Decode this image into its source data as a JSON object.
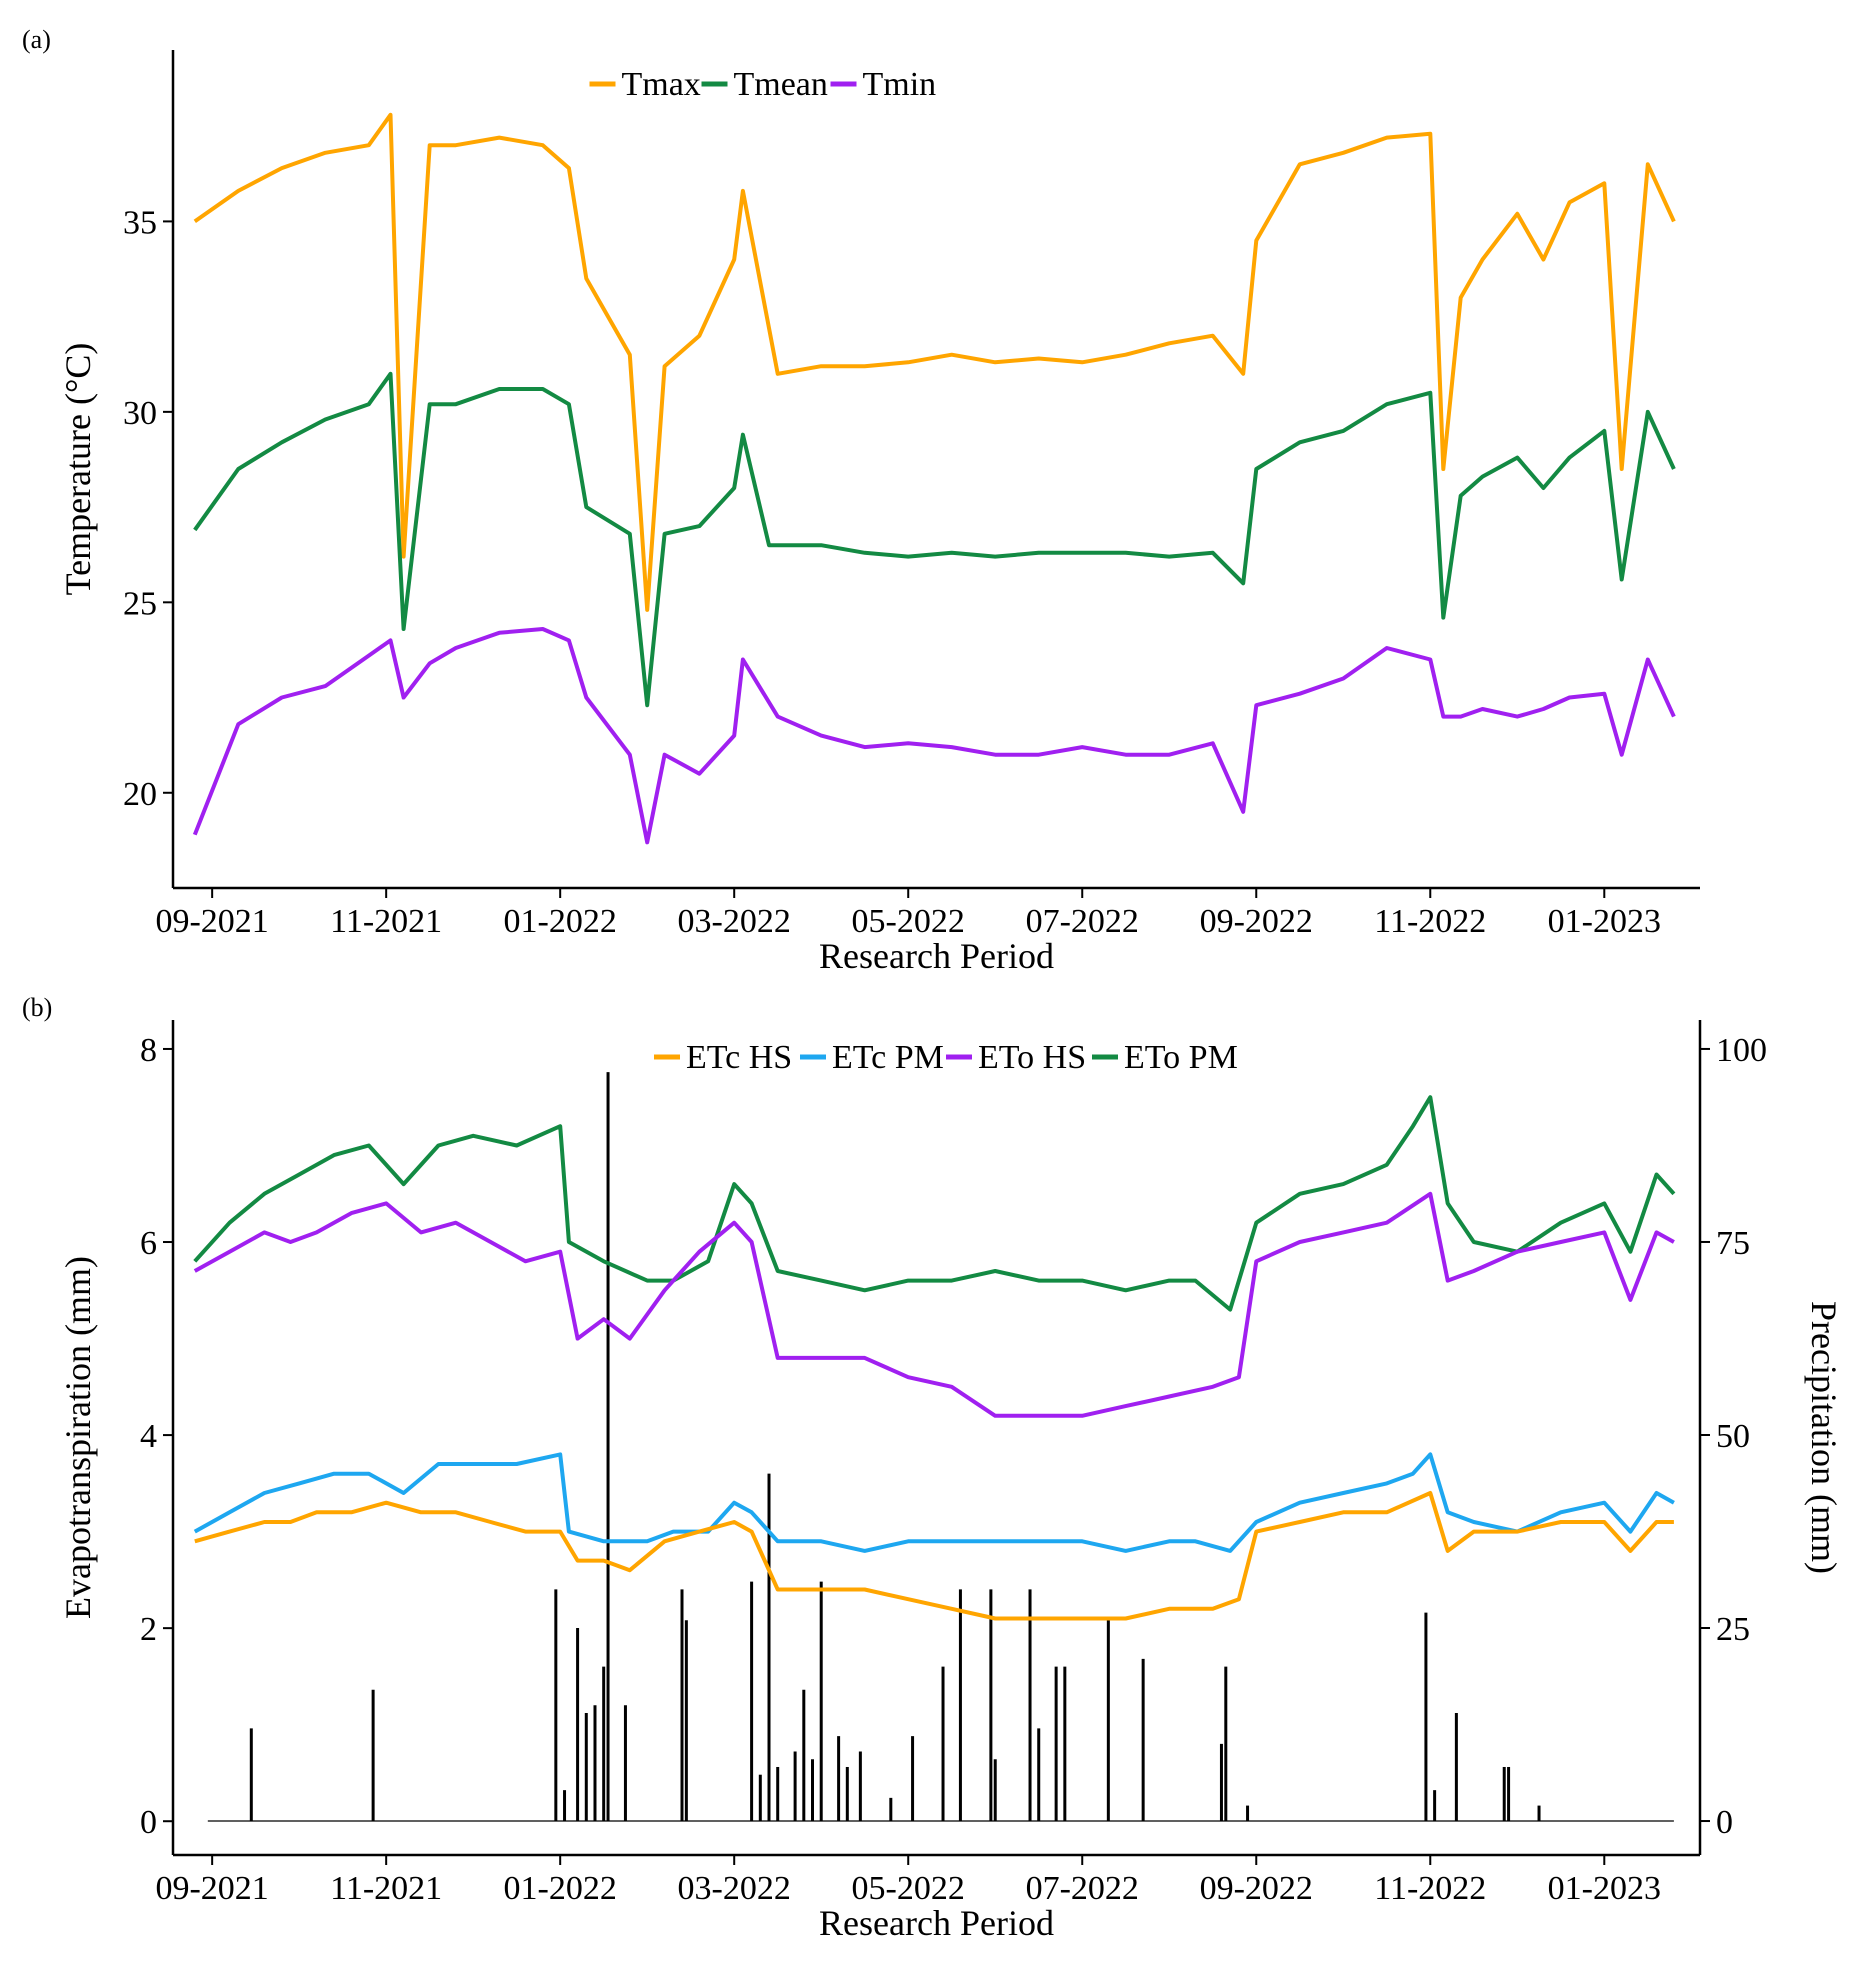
{
  "chart_data": [
    {
      "panel_label": "(a)",
      "type": "line",
      "xlabel": "Research Period",
      "ylabel": "Temperature (°C)",
      "ylim": [
        17.5,
        39.5
      ],
      "xlim_month_index": [
        -0.45,
        17.1
      ],
      "x_ticks": [
        {
          "label": "09-2021",
          "month_index": 0
        },
        {
          "label": "11-2021",
          "month_index": 2
        },
        {
          "label": "01-2022",
          "month_index": 4
        },
        {
          "label": "03-2022",
          "month_index": 6
        },
        {
          "label": "05-2022",
          "month_index": 8
        },
        {
          "label": "07-2022",
          "month_index": 10
        },
        {
          "label": "09-2022",
          "month_index": 12
        },
        {
          "label": "11-2022",
          "month_index": 14
        },
        {
          "label": "01-2023",
          "month_index": 16
        }
      ],
      "y_ticks": [
        {
          "label": "20",
          "value": 20
        },
        {
          "label": "25",
          "value": 25
        },
        {
          "label": "30",
          "value": 30
        },
        {
          "label": "35",
          "value": 35
        }
      ],
      "legend": [
        {
          "name": "Tmax",
          "color": "#FFA500"
        },
        {
          "name": "Tmean",
          "color": "#138A43"
        },
        {
          "name": "Tmin",
          "color": "#A020F0"
        }
      ],
      "series": [
        {
          "name": "Tmax",
          "color": "#FFA500",
          "x": [
            -0.2,
            0.3,
            0.8,
            1.3,
            1.8,
            2.05,
            2.2,
            2.5,
            2.8,
            3.3,
            3.8,
            4.1,
            4.3,
            4.8,
            5.0,
            5.2,
            5.6,
            6.0,
            6.1,
            6.5,
            7.0,
            7.5,
            8.0,
            8.5,
            9.0,
            9.5,
            10.0,
            10.5,
            11.0,
            11.5,
            11.85,
            12.0,
            12.5,
            13.0,
            13.5,
            14.0,
            14.15,
            14.35,
            14.6,
            15.0,
            15.3,
            15.6,
            16.0,
            16.2,
            16.5,
            16.8
          ],
          "values": [
            35.0,
            35.8,
            36.4,
            36.8,
            37.0,
            37.8,
            26.2,
            37.0,
            37.0,
            37.2,
            37.0,
            36.4,
            33.5,
            31.5,
            24.8,
            31.2,
            32.0,
            34.0,
            35.8,
            31.0,
            31.2,
            31.2,
            31.3,
            31.5,
            31.3,
            31.4,
            31.3,
            31.5,
            31.8,
            32.0,
            31.0,
            34.5,
            36.5,
            36.8,
            37.2,
            37.3,
            28.5,
            33.0,
            34.0,
            35.2,
            34.0,
            35.5,
            36.0,
            28.5,
            36.5,
            35.0
          ]
        },
        {
          "name": "Tmean",
          "color": "#138A43",
          "x": [
            -0.2,
            0.3,
            0.8,
            1.3,
            1.8,
            2.05,
            2.2,
            2.5,
            2.8,
            3.3,
            3.8,
            4.1,
            4.3,
            4.8,
            5.0,
            5.2,
            5.6,
            6.0,
            6.1,
            6.4,
            7.0,
            7.5,
            8.0,
            8.5,
            9.0,
            9.5,
            10.0,
            10.5,
            11.0,
            11.5,
            11.85,
            12.0,
            12.5,
            13.0,
            13.5,
            14.0,
            14.15,
            14.35,
            14.6,
            15.0,
            15.3,
            15.6,
            16.0,
            16.2,
            16.5,
            16.8
          ],
          "values": [
            26.9,
            28.5,
            29.2,
            29.8,
            30.2,
            31.0,
            24.3,
            30.2,
            30.2,
            30.6,
            30.6,
            30.2,
            27.5,
            26.8,
            22.3,
            26.8,
            27.0,
            28.0,
            29.4,
            26.5,
            26.5,
            26.3,
            26.2,
            26.3,
            26.2,
            26.3,
            26.3,
            26.3,
            26.2,
            26.3,
            25.5,
            28.5,
            29.2,
            29.5,
            30.2,
            30.5,
            24.6,
            27.8,
            28.3,
            28.8,
            28.0,
            28.8,
            29.5,
            25.6,
            30.0,
            28.5
          ]
        },
        {
          "name": "Tmin",
          "color": "#A020F0",
          "x": [
            -0.2,
            0.3,
            0.8,
            1.3,
            1.8,
            2.05,
            2.2,
            2.5,
            2.8,
            3.3,
            3.8,
            4.1,
            4.3,
            4.8,
            5.0,
            5.2,
            5.6,
            6.0,
            6.1,
            6.5,
            7.0,
            7.5,
            8.0,
            8.5,
            9.0,
            9.5,
            10.0,
            10.5,
            11.0,
            11.5,
            11.85,
            12.0,
            12.5,
            13.0,
            13.5,
            14.0,
            14.15,
            14.35,
            14.6,
            15.0,
            15.3,
            15.6,
            16.0,
            16.2,
            16.5,
            16.8
          ],
          "values": [
            18.9,
            21.8,
            22.5,
            22.8,
            23.6,
            24.0,
            22.5,
            23.4,
            23.8,
            24.2,
            24.3,
            24.0,
            22.5,
            21.0,
            18.7,
            21.0,
            20.5,
            21.5,
            23.5,
            22.0,
            21.5,
            21.2,
            21.3,
            21.2,
            21.0,
            21.0,
            21.2,
            21.0,
            21.0,
            21.3,
            19.5,
            22.3,
            22.6,
            23.0,
            23.8,
            23.5,
            22.0,
            22.0,
            22.2,
            22.0,
            22.2,
            22.5,
            22.6,
            21.0,
            23.5,
            22.0
          ]
        }
      ]
    },
    {
      "panel_label": "(b)",
      "type": "line",
      "xlabel": "Research Period",
      "ylabel": "Evapotranspiration (mm)",
      "ylabel_right": "Precipitation (mm)",
      "ylim": [
        -0.35,
        8.3
      ],
      "ylim_right": [
        -4.4,
        103.75
      ],
      "xlim_month_index": [
        -0.45,
        17.1
      ],
      "x_ticks": [
        {
          "label": "09-2021",
          "month_index": 0
        },
        {
          "label": "11-2021",
          "month_index": 2
        },
        {
          "label": "01-2022",
          "month_index": 4
        },
        {
          "label": "03-2022",
          "month_index": 6
        },
        {
          "label": "05-2022",
          "month_index": 8
        },
        {
          "label": "07-2022",
          "month_index": 10
        },
        {
          "label": "09-2022",
          "month_index": 12
        },
        {
          "label": "11-2022",
          "month_index": 14
        },
        {
          "label": "01-2023",
          "month_index": 16
        }
      ],
      "y_ticks": [
        {
          "label": "0",
          "value": 0
        },
        {
          "label": "2",
          "value": 2
        },
        {
          "label": "4",
          "value": 4
        },
        {
          "label": "6",
          "value": 6
        },
        {
          "label": "8",
          "value": 8
        }
      ],
      "y_ticks_right": [
        {
          "label": "0",
          "value": 0
        },
        {
          "label": "25",
          "value": 25
        },
        {
          "label": "50",
          "value": 50
        },
        {
          "label": "75",
          "value": 75
        },
        {
          "label": "100",
          "value": 100
        }
      ],
      "legend": [
        {
          "name": "ETc HS",
          "color": "#FFA500"
        },
        {
          "name": "ETc PM",
          "color": "#1EA7F0"
        },
        {
          "name": "ETo HS",
          "color": "#A020F0"
        },
        {
          "name": "ETo PM",
          "color": "#138A43"
        }
      ],
      "series": [
        {
          "name": "ETo PM",
          "color": "#138A43",
          "x": [
            -0.2,
            0.2,
            0.6,
            1.0,
            1.4,
            1.8,
            2.2,
            2.6,
            3.0,
            3.5,
            4.0,
            4.1,
            4.5,
            5.0,
            5.3,
            5.7,
            6.0,
            6.2,
            6.5,
            7.0,
            7.5,
            8.0,
            8.5,
            9.0,
            9.5,
            10.0,
            10.5,
            11.0,
            11.3,
            11.7,
            12.0,
            12.5,
            13.0,
            13.5,
            13.8,
            14.0,
            14.2,
            14.5,
            15.0,
            15.5,
            16.0,
            16.3,
            16.6,
            16.8
          ],
          "values": [
            5.8,
            6.2,
            6.5,
            6.7,
            6.9,
            7.0,
            6.6,
            7.0,
            7.1,
            7.0,
            7.2,
            6.0,
            5.8,
            5.6,
            5.6,
            5.8,
            6.6,
            6.4,
            5.7,
            5.6,
            5.5,
            5.6,
            5.6,
            5.7,
            5.6,
            5.6,
            5.5,
            5.6,
            5.6,
            5.3,
            6.2,
            6.5,
            6.6,
            6.8,
            7.2,
            7.5,
            6.4,
            6.0,
            5.9,
            6.2,
            6.4,
            5.9,
            6.7,
            6.5
          ]
        },
        {
          "name": "ETo HS",
          "color": "#A020F0",
          "x": [
            -0.2,
            0.2,
            0.6,
            0.9,
            1.2,
            1.6,
            2.0,
            2.4,
            2.8,
            3.2,
            3.6,
            4.0,
            4.2,
            4.5,
            4.8,
            5.2,
            5.6,
            6.0,
            6.2,
            6.5,
            7.0,
            7.5,
            8.0,
            8.5,
            9.0,
            9.5,
            10.0,
            10.5,
            11.0,
            11.5,
            11.8,
            12.0,
            12.5,
            13.0,
            13.5,
            14.0,
            14.2,
            14.5,
            15.0,
            15.5,
            16.0,
            16.3,
            16.6,
            16.8
          ],
          "values": [
            5.7,
            5.9,
            6.1,
            6.0,
            6.1,
            6.3,
            6.4,
            6.1,
            6.2,
            6.0,
            5.8,
            5.9,
            5.0,
            5.2,
            5.0,
            5.5,
            5.9,
            6.2,
            6.0,
            4.8,
            4.8,
            4.8,
            4.6,
            4.5,
            4.2,
            4.2,
            4.2,
            4.3,
            4.4,
            4.5,
            4.6,
            5.8,
            6.0,
            6.1,
            6.2,
            6.5,
            5.6,
            5.7,
            5.9,
            6.0,
            6.1,
            5.4,
            6.1,
            6.0
          ]
        },
        {
          "name": "ETc PM",
          "color": "#1EA7F0",
          "x": [
            -0.2,
            0.2,
            0.6,
            1.0,
            1.4,
            1.8,
            2.2,
            2.6,
            3.0,
            3.5,
            4.0,
            4.1,
            4.5,
            5.0,
            5.3,
            5.7,
            6.0,
            6.2,
            6.5,
            7.0,
            7.5,
            8.0,
            8.5,
            9.0,
            9.5,
            10.0,
            10.5,
            11.0,
            11.3,
            11.7,
            12.0,
            12.5,
            13.0,
            13.5,
            13.8,
            14.0,
            14.2,
            14.5,
            15.0,
            15.5,
            16.0,
            16.3,
            16.6,
            16.8
          ],
          "values": [
            3.0,
            3.2,
            3.4,
            3.5,
            3.6,
            3.6,
            3.4,
            3.7,
            3.7,
            3.7,
            3.8,
            3.0,
            2.9,
            2.9,
            3.0,
            3.0,
            3.3,
            3.2,
            2.9,
            2.9,
            2.8,
            2.9,
            2.9,
            2.9,
            2.9,
            2.9,
            2.8,
            2.9,
            2.9,
            2.8,
            3.1,
            3.3,
            3.4,
            3.5,
            3.6,
            3.8,
            3.2,
            3.1,
            3.0,
            3.2,
            3.3,
            3.0,
            3.4,
            3.3
          ]
        },
        {
          "name": "ETc HS",
          "color": "#FFA500",
          "x": [
            -0.2,
            0.2,
            0.6,
            0.9,
            1.2,
            1.6,
            2.0,
            2.4,
            2.8,
            3.2,
            3.6,
            4.0,
            4.2,
            4.5,
            4.8,
            5.2,
            5.6,
            6.0,
            6.2,
            6.5,
            7.0,
            7.5,
            8.0,
            8.5,
            9.0,
            9.5,
            10.0,
            10.5,
            11.0,
            11.5,
            11.8,
            12.0,
            12.5,
            13.0,
            13.5,
            14.0,
            14.2,
            14.5,
            15.0,
            15.5,
            16.0,
            16.3,
            16.6,
            16.8
          ],
          "values": [
            2.9,
            3.0,
            3.1,
            3.1,
            3.2,
            3.2,
            3.3,
            3.2,
            3.2,
            3.1,
            3.0,
            3.0,
            2.7,
            2.7,
            2.6,
            2.9,
            3.0,
            3.1,
            3.0,
            2.4,
            2.4,
            2.4,
            2.3,
            2.2,
            2.1,
            2.1,
            2.1,
            2.1,
            2.2,
            2.2,
            2.3,
            3.0,
            3.1,
            3.2,
            3.2,
            3.4,
            2.8,
            3.0,
            3.0,
            3.1,
            3.1,
            2.8,
            3.1,
            3.1
          ]
        },
        {
          "name": "Precipitation",
          "axis": "right",
          "type": "bar",
          "color": "#000000",
          "x": [
            0.45,
            1.85,
            3.95,
            4.05,
            4.2,
            4.3,
            4.4,
            4.5,
            4.55,
            4.75,
            5.4,
            5.45,
            6.2,
            6.3,
            6.4,
            6.5,
            6.7,
            6.8,
            6.9,
            7.0,
            7.2,
            7.3,
            7.45,
            7.8,
            8.05,
            8.4,
            8.6,
            8.95,
            9.0,
            9.4,
            9.5,
            9.7,
            9.8,
            10.3,
            10.7,
            11.6,
            11.65,
            11.9,
            13.95,
            14.05,
            14.3,
            14.85,
            14.9,
            15.25
          ],
          "values": [
            12,
            17,
            30,
            4,
            25,
            14,
            15,
            20,
            97,
            15,
            30,
            26,
            31,
            6,
            45,
            7,
            9,
            17,
            8,
            31,
            11,
            7,
            9,
            3,
            11,
            20,
            30,
            30,
            8,
            30,
            12,
            20,
            20,
            26,
            21,
            10,
            20,
            2,
            27,
            4,
            14,
            7,
            7,
            2
          ]
        }
      ]
    }
  ]
}
